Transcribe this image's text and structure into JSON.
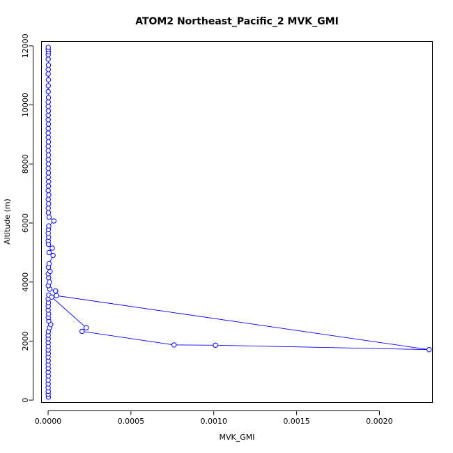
{
  "chart_data": {
    "type": "line",
    "title": "ATOM2 Northeast_Pacific_2 MVK_GMI",
    "xlabel": "MVK_GMI",
    "ylabel": "Altitude (m)",
    "xlim": [
      -4e-05,
      0.00232
    ],
    "ylim": [
      -80,
      12150
    ],
    "x_ticks": [
      0,
      0.0005,
      0.001,
      0.0015,
      0.002
    ],
    "x_tick_labels": [
      "0.0000",
      "0.0005",
      "0.0010",
      "0.0015",
      "0.0020"
    ],
    "y_ticks": [
      0,
      2000,
      4000,
      6000,
      8000,
      10000,
      12000
    ],
    "y_tick_labels": [
      "0",
      "2000",
      "4000",
      "6000",
      "8000",
      "10000",
      "12000"
    ],
    "grid": false,
    "color": "#0000ff",
    "series": [
      {
        "points": [
          [
            2e-06,
            100
          ],
          [
            5e-07,
            200
          ],
          [
            1e-06,
            300
          ],
          [
            3e-07,
            420
          ],
          [
            8e-07,
            550
          ],
          [
            4e-07,
            680
          ],
          [
            1e-06,
            820
          ],
          [
            6e-07,
            950
          ],
          [
            9e-07,
            1080
          ],
          [
            5e-07,
            1200
          ],
          [
            1e-06,
            1330
          ],
          [
            4e-07,
            1460
          ],
          [
            1.2e-06,
            1580
          ],
          [
            6e-07,
            1700
          ],
          [
            1e-06,
            1820
          ],
          [
            5e-07,
            1950
          ],
          [
            9e-07,
            2080
          ],
          [
            7e-07,
            2200
          ],
          [
            1.2e-06,
            2320
          ],
          [
            8e-06,
            2450
          ],
          [
            1.6e-05,
            2560
          ],
          [
            4e-06,
            2680
          ],
          [
            1e-06,
            2800
          ],
          [
            3e-06,
            2920
          ],
          [
            6e-07,
            3050
          ],
          [
            1e-06,
            3180
          ],
          [
            2e-06,
            3300
          ],
          [
            6e-07,
            3430
          ],
          [
            4e-06,
            3560
          ],
          [
            2.2e-05,
            3490
          ],
          [
            0.00023,
            2450
          ],
          [
            0.000205,
            2330
          ],
          [
            0.00076,
            1870
          ],
          [
            0.00101,
            1860
          ],
          [
            0.0023,
            1710
          ],
          [
            5e-05,
            3540
          ],
          [
            4.5e-05,
            3700
          ],
          [
            1e-05,
            3760
          ],
          [
            1e-06,
            3880
          ],
          [
            8e-06,
            4000
          ],
          [
            3e-06,
            4150
          ],
          [
            1e-06,
            4280
          ],
          [
            1.2e-05,
            4360
          ],
          [
            2e-06,
            4500
          ],
          [
            6e-06,
            4620
          ],
          [
            3e-05,
            4900
          ],
          [
            6e-06,
            5000
          ],
          [
            2.5e-05,
            5150
          ],
          [
            2e-06,
            5280
          ],
          [
            8e-07,
            5400
          ],
          [
            3e-06,
            5520
          ],
          [
            1e-06,
            5650
          ],
          [
            2e-06,
            5780
          ],
          [
            4e-06,
            5900
          ],
          [
            3.5e-05,
            6070
          ],
          [
            6e-06,
            6200
          ],
          [
            2e-06,
            6350
          ],
          [
            8e-07,
            6500
          ],
          [
            3e-06,
            6650
          ],
          [
            1e-06,
            6800
          ],
          [
            4e-06,
            6950
          ],
          [
            7e-07,
            7100
          ],
          [
            2e-06,
            7250
          ],
          [
            3e-06,
            7400
          ],
          [
            1e-06,
            7550
          ],
          [
            2e-06,
            7700
          ],
          [
            8e-07,
            7850
          ],
          [
            2e-06,
            8000
          ],
          [
            1e-06,
            8150
          ],
          [
            2e-06,
            8300
          ],
          [
            8e-07,
            8450
          ],
          [
            1e-06,
            8600
          ],
          [
            2e-06,
            8750
          ],
          [
            1e-06,
            8900
          ],
          [
            6e-07,
            9050
          ],
          [
            1e-06,
            9200
          ],
          [
            2e-06,
            9350
          ],
          [
            8e-07,
            9500
          ],
          [
            1e-06,
            9650
          ],
          [
            2e-06,
            9800
          ],
          [
            7e-07,
            9950
          ],
          [
            1e-06,
            10100
          ],
          [
            2e-06,
            10250
          ],
          [
            8e-07,
            10450
          ],
          [
            1e-06,
            10650
          ],
          [
            2e-06,
            10850
          ],
          [
            7e-07,
            11050
          ],
          [
            1e-06,
            11200
          ],
          [
            2e-06,
            11350
          ],
          [
            8e-07,
            11550
          ],
          [
            1e-06,
            11700
          ],
          [
            2e-06,
            11800
          ],
          [
            6e-07,
            11880
          ],
          [
            1e-06,
            11950
          ]
        ]
      }
    ]
  }
}
